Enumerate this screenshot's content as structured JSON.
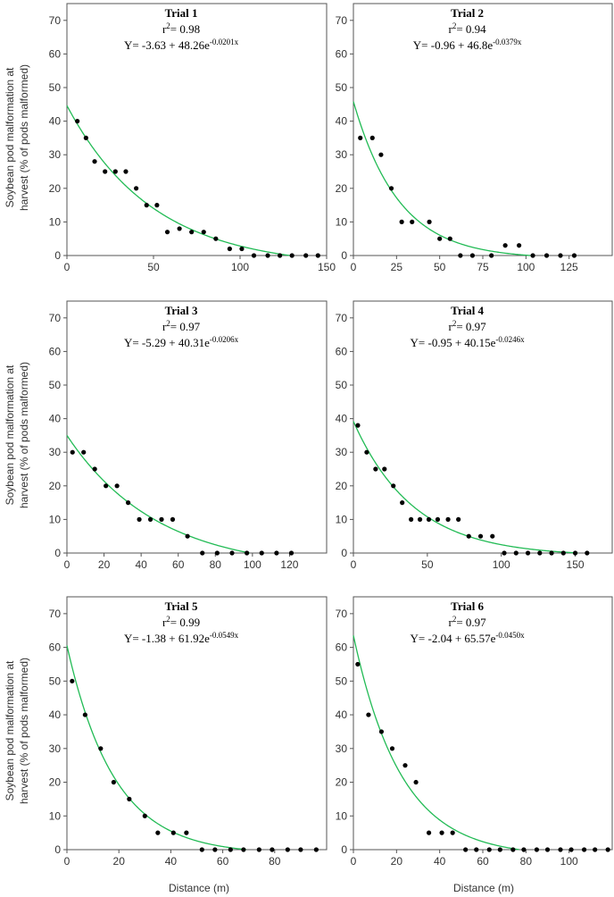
{
  "figure": {
    "y_axis_label_line1": "Soybean pod malformation at",
    "y_axis_label_line2": "harvest (% of pods malformed)",
    "x_axis_label": "Distance (m)"
  },
  "chart_data": [
    {
      "type": "scatter",
      "title": "Trial 1",
      "r2_prefix": "r",
      "r2_sup": "2",
      "r2_value": "= 0.98",
      "equation_main": "Y= -3.63 + 48.26e",
      "equation_exp": "-0.0201x",
      "fit": {
        "a": -3.63,
        "b": 48.26,
        "k": 0.0201
      },
      "xlim": [
        0,
        150
      ],
      "ylim": [
        0,
        75
      ],
      "xticks": [
        0,
        50,
        100,
        150
      ],
      "yticks": [
        0,
        10,
        20,
        30,
        40,
        50,
        60,
        70
      ],
      "x": [
        6,
        11,
        16,
        22,
        28,
        34,
        40,
        46,
        52,
        58,
        65,
        72,
        79,
        86,
        94,
        101,
        108,
        116,
        123,
        130,
        138,
        145
      ],
      "y": [
        40,
        35,
        28,
        25,
        25,
        25,
        20,
        15,
        15,
        7,
        8,
        7,
        7,
        5,
        2,
        2,
        0,
        0,
        0,
        0,
        0,
        0
      ],
      "point_color": "#000000",
      "curve_color": "#22bb55"
    },
    {
      "type": "scatter",
      "title": "Trial 2",
      "r2_prefix": "r",
      "r2_sup": "2",
      "r2_value": "= 0.94",
      "equation_main": "Y= -0.96 + 46.8e",
      "equation_exp": "-0.0379x",
      "fit": {
        "a": -0.96,
        "b": 46.8,
        "k": 0.0379
      },
      "xlim": [
        0,
        150
      ],
      "ylim": [
        0,
        75
      ],
      "xticks": [
        0,
        25,
        50,
        75,
        100,
        125
      ],
      "yticks": [
        0,
        10,
        20,
        30,
        40,
        50,
        60,
        70
      ],
      "x": [
        4,
        11,
        16,
        22,
        28,
        34,
        44,
        50,
        56,
        62,
        69,
        80,
        88,
        96,
        104,
        112,
        120,
        128
      ],
      "y": [
        35,
        35,
        30,
        20,
        10,
        10,
        10,
        5,
        5,
        0,
        0,
        0,
        3,
        3,
        0,
        0,
        0,
        0
      ],
      "point_color": "#000000",
      "curve_color": "#22bb55"
    },
    {
      "type": "scatter",
      "title": "Trial 3",
      "r2_prefix": "r",
      "r2_sup": "2",
      "r2_value": "= 0.97",
      "equation_main": "Y= -5.29 + 40.31e",
      "equation_exp": "-0.0206x",
      "fit": {
        "a": -5.29,
        "b": 40.31,
        "k": 0.0206
      },
      "xlim": [
        0,
        140
      ],
      "ylim": [
        0,
        75
      ],
      "xticks": [
        0,
        20,
        40,
        60,
        80,
        100,
        120
      ],
      "yticks": [
        0,
        10,
        20,
        30,
        40,
        50,
        60,
        70
      ],
      "x": [
        3,
        9,
        15,
        21,
        27,
        33,
        39,
        45,
        51,
        57,
        65,
        73,
        81,
        89,
        97,
        105,
        113,
        121
      ],
      "y": [
        30,
        30,
        25,
        20,
        20,
        15,
        10,
        10,
        10,
        10,
        5,
        0,
        0,
        0,
        0,
        0,
        0,
        0
      ],
      "point_color": "#000000",
      "curve_color": "#22bb55"
    },
    {
      "type": "scatter",
      "title": "Trial 4",
      "r2_prefix": "r",
      "r2_sup": "2",
      "r2_value": "= 0.97",
      "equation_main": "Y= -0.95 + 40.15e",
      "equation_exp": "-0.0246x",
      "fit": {
        "a": -0.95,
        "b": 40.15,
        "k": 0.0246
      },
      "xlim": [
        0,
        175
      ],
      "ylim": [
        0,
        75
      ],
      "xticks": [
        0,
        50,
        100,
        150
      ],
      "yticks": [
        0,
        10,
        20,
        30,
        40,
        50,
        60,
        70
      ],
      "x": [
        3,
        9,
        15,
        21,
        27,
        33,
        39,
        45,
        51,
        57,
        64,
        71,
        78,
        86,
        94,
        102,
        110,
        118,
        126,
        134,
        142,
        150,
        158
      ],
      "y": [
        38,
        30,
        25,
        25,
        20,
        15,
        10,
        10,
        10,
        10,
        10,
        10,
        5,
        5,
        5,
        0,
        0,
        0,
        0,
        0,
        0,
        0,
        0
      ],
      "point_color": "#000000",
      "curve_color": "#22bb55"
    },
    {
      "type": "scatter",
      "title": "Trial 5",
      "r2_prefix": "r",
      "r2_sup": "2",
      "r2_value": "= 0.99",
      "equation_main": "Y= -1.38 + 61.92e",
      "equation_exp": "-0.0549x",
      "fit": {
        "a": -1.38,
        "b": 61.92,
        "k": 0.0549
      },
      "xlim": [
        0,
        100
      ],
      "ylim": [
        0,
        75
      ],
      "xticks": [
        0,
        20,
        40,
        60,
        80
      ],
      "yticks": [
        0,
        10,
        20,
        30,
        40,
        50,
        60,
        70
      ],
      "x": [
        2,
        7,
        13,
        18,
        24,
        30,
        35,
        41,
        46,
        52,
        57,
        63,
        68,
        74,
        79,
        85,
        90,
        96
      ],
      "y": [
        50,
        40,
        30,
        20,
        15,
        10,
        5,
        5,
        5,
        0,
        0,
        0,
        0,
        0,
        0,
        0,
        0,
        0
      ],
      "point_color": "#000000",
      "curve_color": "#22bb55"
    },
    {
      "type": "scatter",
      "title": "Trial 6",
      "r2_prefix": "r",
      "r2_sup": "2",
      "r2_value": "= 0.97",
      "equation_main": "Y= -2.04 + 65.57e",
      "equation_exp": "-0.0450x",
      "fit": {
        "a": -2.04,
        "b": 65.57,
        "k": 0.045
      },
      "xlim": [
        0,
        120
      ],
      "ylim": [
        0,
        75
      ],
      "xticks": [
        0,
        20,
        40,
        60,
        80,
        100
      ],
      "yticks": [
        0,
        10,
        20,
        30,
        40,
        50,
        60,
        70
      ],
      "x": [
        2,
        7,
        13,
        18,
        24,
        29,
        35,
        41,
        46,
        52,
        57,
        63,
        68,
        74,
        79,
        85,
        90,
        96,
        101,
        107,
        112,
        118
      ],
      "y": [
        55,
        40,
        35,
        30,
        25,
        20,
        5,
        5,
        5,
        0,
        0,
        0,
        0,
        0,
        0,
        0,
        0,
        0,
        0,
        0,
        0,
        0
      ],
      "point_color": "#000000",
      "curve_color": "#22bb55"
    }
  ]
}
